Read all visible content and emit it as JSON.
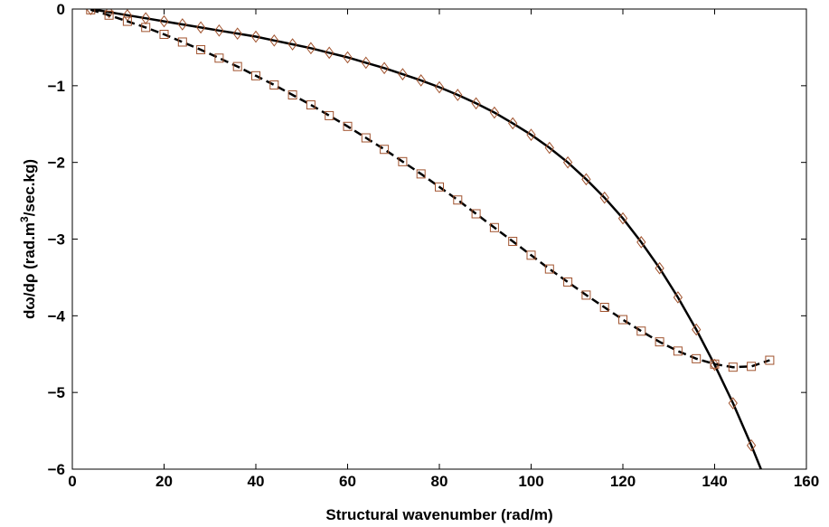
{
  "chart_data": {
    "type": "line",
    "title": "",
    "xlabel": "Structural wavenumber (rad/m)",
    "ylabel": "dω/dρ (rad.m³/sec.kg)",
    "ylabel_parts": {
      "pre": "dω/dρ (rad.m",
      "sup": "3",
      "post": "/sec.kg)"
    },
    "xlim": [
      0,
      160
    ],
    "ylim": [
      -6,
      0
    ],
    "xticks": [
      0,
      20,
      40,
      60,
      80,
      100,
      120,
      140,
      160
    ],
    "yticks": [
      0,
      -1,
      -2,
      -3,
      -4,
      -5,
      -6
    ],
    "xtick_labels": [
      "0",
      "20",
      "40",
      "60",
      "80",
      "100",
      "120",
      "140",
      "160"
    ],
    "ytick_labels": [
      "0",
      "−1",
      "−2",
      "−3",
      "−4",
      "−5",
      "−6"
    ],
    "grid": false,
    "legend": "none",
    "series": [
      {
        "line_style": "solid",
        "marker": "diamond",
        "line_color": "#000000",
        "marker_color": "#a0522d",
        "x": [
          4,
          8,
          12,
          16,
          20,
          24,
          28,
          32,
          36,
          40,
          44,
          48,
          52,
          56,
          60,
          64,
          68,
          72,
          76,
          80,
          84,
          88,
          92,
          96,
          100,
          104,
          108,
          112,
          116,
          120,
          124,
          128,
          132,
          136,
          140,
          144,
          148,
          152
        ],
        "y": [
          0,
          -0.04,
          -0.08,
          -0.12,
          -0.16,
          -0.2,
          -0.24,
          -0.28,
          -0.32,
          -0.36,
          -0.41,
          -0.46,
          -0.51,
          -0.57,
          -0.63,
          -0.7,
          -0.77,
          -0.85,
          -0.93,
          -1.02,
          -1.12,
          -1.23,
          -1.35,
          -1.49,
          -1.64,
          -1.81,
          -2.0,
          -2.22,
          -2.46,
          -2.73,
          -3.04,
          -3.38,
          -3.76,
          -4.18,
          -4.64,
          -5.14,
          -5.69,
          -6.28
        ]
      },
      {
        "line_style": "dashed",
        "marker": "square",
        "line_color": "#000000",
        "marker_color": "#a0522d",
        "x": [
          4,
          8,
          12,
          16,
          20,
          24,
          28,
          32,
          36,
          40,
          44,
          48,
          52,
          56,
          60,
          64,
          68,
          72,
          76,
          80,
          84,
          88,
          92,
          96,
          100,
          104,
          108,
          112,
          116,
          120,
          124,
          128,
          132,
          136,
          140,
          144,
          148,
          152
        ],
        "y": [
          -0.01,
          -0.08,
          -0.16,
          -0.24,
          -0.33,
          -0.43,
          -0.53,
          -0.64,
          -0.75,
          -0.87,
          -0.99,
          -1.12,
          -1.25,
          -1.39,
          -1.53,
          -1.68,
          -1.83,
          -1.99,
          -2.15,
          -2.32,
          -2.49,
          -2.67,
          -2.85,
          -3.03,
          -3.21,
          -3.39,
          -3.56,
          -3.73,
          -3.89,
          -4.05,
          -4.2,
          -4.34,
          -4.46,
          -4.56,
          -4.63,
          -4.67,
          -4.66,
          -4.58
        ]
      }
    ]
  }
}
